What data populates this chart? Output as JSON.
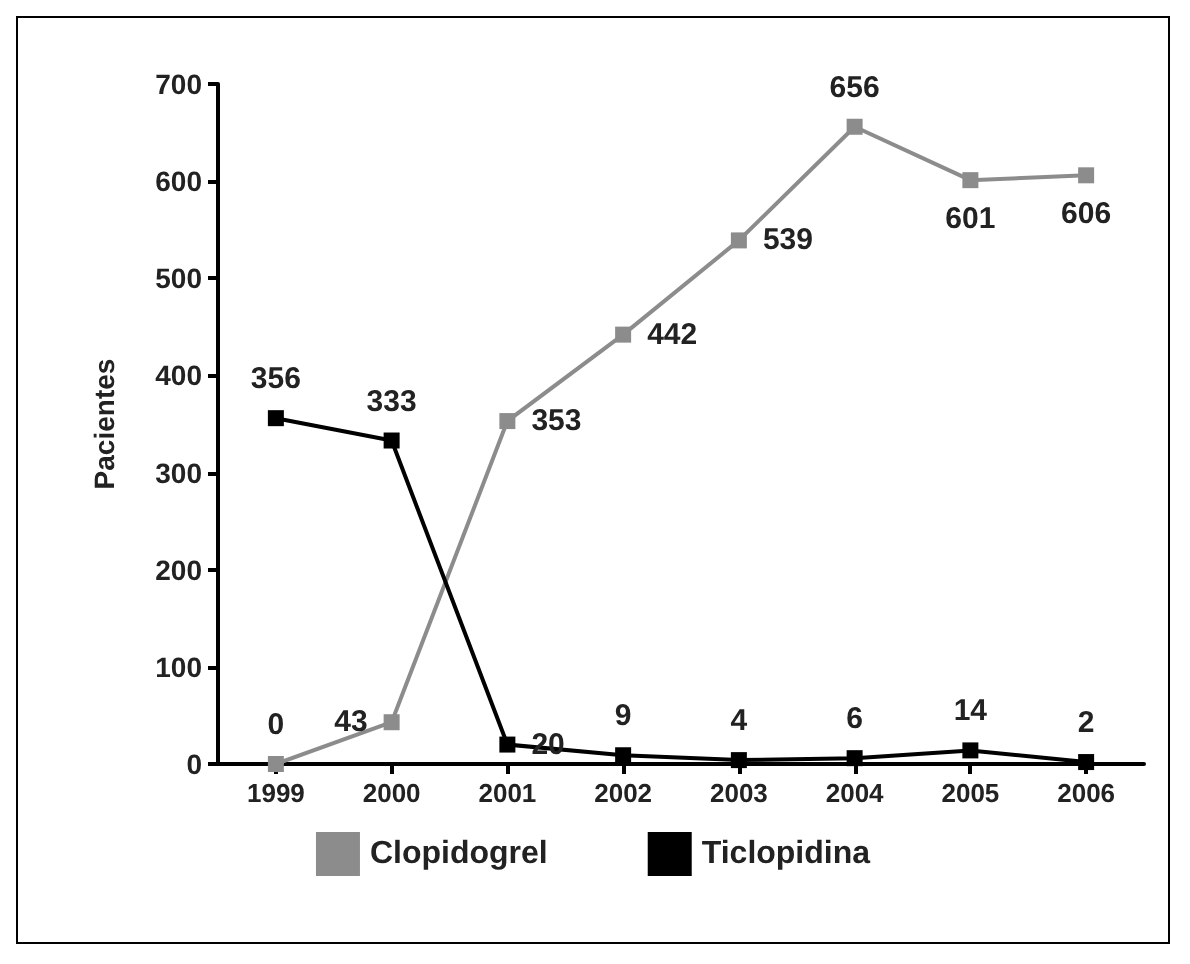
{
  "chart_data": {
    "type": "line",
    "ylabel": "Pacientes",
    "categories": [
      "1999",
      "2000",
      "2001",
      "2002",
      "2003",
      "2004",
      "2005",
      "2006"
    ],
    "series": [
      {
        "name": "Clopidogrel",
        "color": "#8c8c8c",
        "values": [
          0,
          43,
          353,
          442,
          539,
          656,
          601,
          606
        ]
      },
      {
        "name": "Ticlopidina",
        "color": "#000000",
        "values": [
          356,
          333,
          20,
          9,
          4,
          6,
          14,
          2
        ]
      }
    ],
    "ylim": [
      0,
      700
    ],
    "yticks": [
      0,
      100,
      200,
      300,
      400,
      500,
      600,
      700
    ],
    "grid": false,
    "legend": "bottom",
    "marker": "square",
    "line_style": "solid",
    "data_labels": true
  }
}
